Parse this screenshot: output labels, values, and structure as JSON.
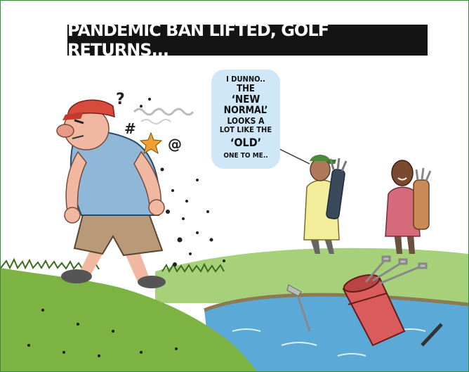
{
  "title": "PANDEMIC BAN LIFTED, GOLF RETURNS...",
  "speech_bubble": {
    "lines": [
      "I DUNNO..",
      "THE",
      "‘NEW",
      "NORMAL’",
      "LOOKS A",
      "LOT LIKE THE",
      "‘OLD’",
      "ONE TO ME.."
    ]
  },
  "angry_golfer": {
    "symbols": [
      "?",
      "#",
      "@"
    ]
  },
  "colors": {
    "frame": "#3a8a3a",
    "banner": "#141414",
    "bubble": "#cfe7f6",
    "grass": "#7cb342",
    "water": "#5aa9d6",
    "golf_bag": "#d95b5b"
  },
  "icons": [
    "star-icon",
    "golf-club-icon",
    "golf-bag-icon"
  ]
}
